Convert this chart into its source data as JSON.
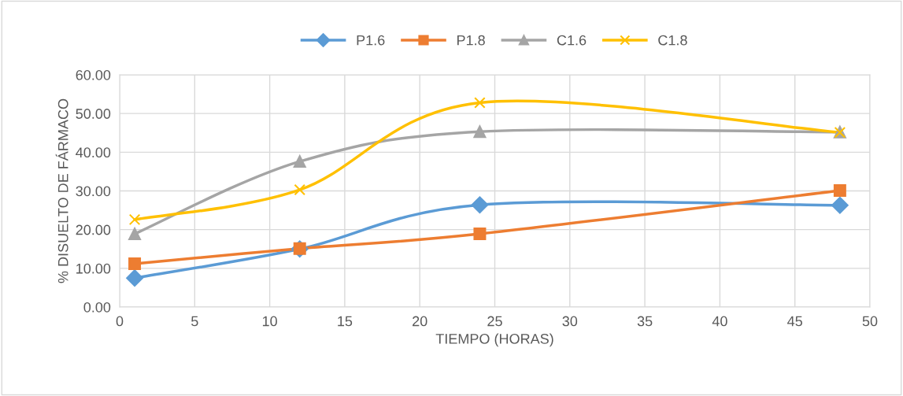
{
  "chart_data": {
    "type": "line",
    "xlabel": "TIEMPO (HORAS)",
    "ylabel": "% DISUELTO DE FÁRMACO",
    "x": [
      1,
      12,
      24,
      48
    ],
    "series": [
      {
        "name": "P1.6",
        "color": "#5b9bd5",
        "marker": "diamond",
        "values": [
          7.5,
          15.0,
          26.4,
          26.3
        ]
      },
      {
        "name": "P1.8",
        "color": "#ed7d31",
        "marker": "square",
        "values": [
          11.2,
          15.1,
          18.9,
          30.1
        ]
      },
      {
        "name": "C1.6",
        "color": "#a5a5a5",
        "marker": "triangle",
        "values": [
          18.9,
          37.6,
          45.3,
          45.2
        ]
      },
      {
        "name": "C1.8",
        "color": "#ffc000",
        "marker": "cross",
        "values": [
          22.6,
          30.3,
          52.8,
          45.1
        ]
      }
    ],
    "xlim": [
      0,
      50
    ],
    "xticks": [
      0,
      5,
      10,
      15,
      20,
      25,
      30,
      35,
      40,
      45,
      50
    ],
    "ylim": [
      0,
      60
    ],
    "yticks": [
      {
        "value": 0,
        "label": "0.00"
      },
      {
        "value": 10,
        "label": "10.00"
      },
      {
        "value": 20,
        "label": "20.00"
      },
      {
        "value": 30,
        "label": "30.00"
      },
      {
        "value": 40,
        "label": "40.00"
      },
      {
        "value": 50,
        "label": "50.00"
      },
      {
        "value": 60,
        "label": "60.00"
      }
    ],
    "grid": true,
    "legend": "top",
    "line_style": "solid"
  }
}
